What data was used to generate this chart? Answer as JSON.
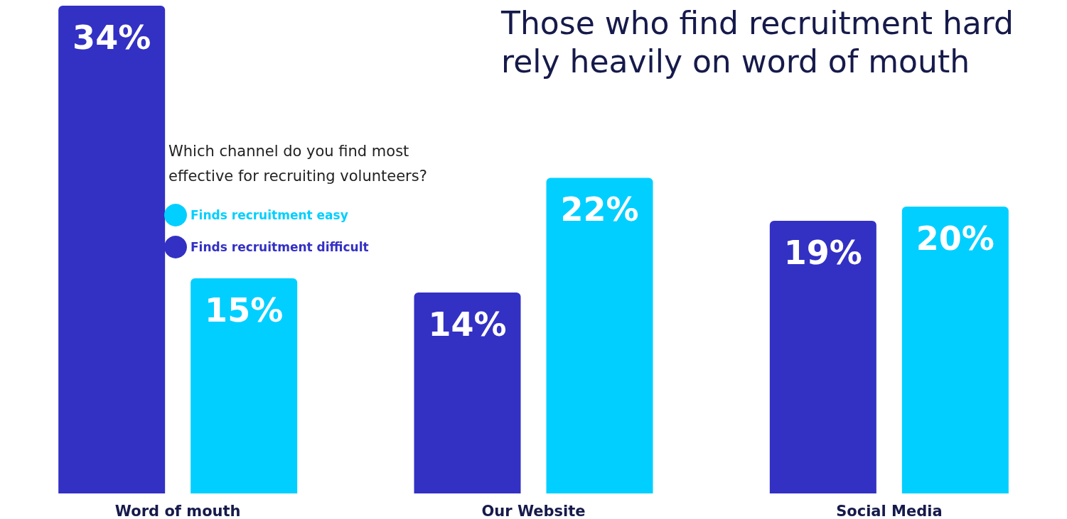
{
  "chart_data": {
    "type": "bar",
    "title": "Those who find recruitment hard\nrely heavily on word of mouth",
    "subtitle": "Which channel do you find most\neffective for recruiting volunteers?",
    "categories": [
      "Word of mouth",
      "Our Website",
      "Social Media"
    ],
    "series": [
      {
        "name": "Finds recruitment difficult",
        "color": "#3330c4",
        "values": [
          34,
          14,
          19
        ],
        "value_labels": [
          "34%",
          "14%",
          "19%"
        ]
      },
      {
        "name": "Finds recruitment easy",
        "color": "#00cfff",
        "values": [
          15,
          22,
          20
        ],
        "value_labels": [
          "15%",
          "22%",
          "20%"
        ]
      }
    ],
    "legend": "left"
  }
}
